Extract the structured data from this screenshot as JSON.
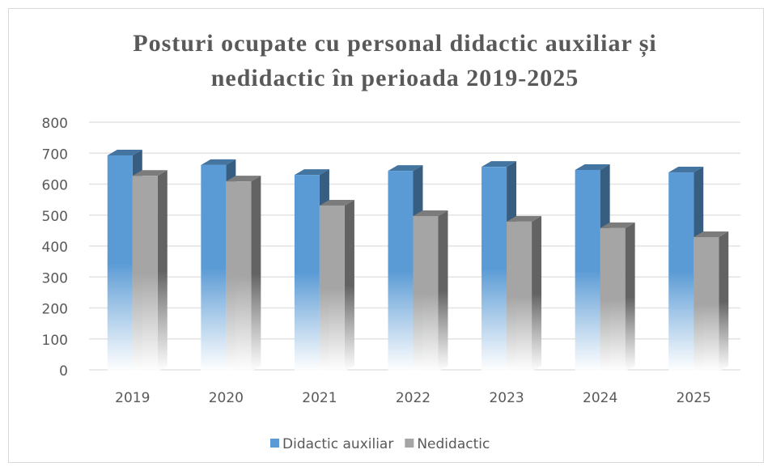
{
  "chart_data": {
    "type": "bar3d",
    "title": [
      "Posturi ocupate cu personal didactic auxiliar și",
      "nedidactic în perioada 2019-2025"
    ],
    "categories": [
      "2019",
      "2020",
      "2021",
      "2022",
      "2023",
      "2024",
      "2025"
    ],
    "series": [
      {
        "name": "Didactic auxiliar",
        "color": "#5b9bd5",
        "values": [
          698,
          667,
          635,
          648,
          661,
          651,
          643
        ]
      },
      {
        "name": "Nedidactic",
        "color": "#a5a5a5",
        "values": [
          632,
          614,
          536,
          502,
          484,
          463,
          434
        ]
      }
    ],
    "ylim": [
      0,
      800
    ],
    "yticks": [
      0,
      100,
      200,
      300,
      400,
      500,
      600,
      700,
      800
    ],
    "grid": true,
    "legend": "bottom"
  }
}
